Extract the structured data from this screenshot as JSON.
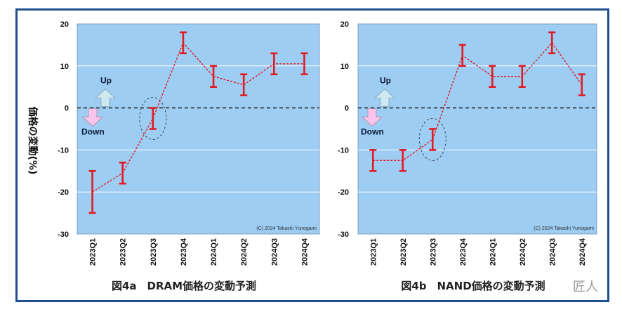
{
  "y_axis_label": "価格の変動(%)",
  "watermark": "匠人",
  "legend_up": "Up",
  "legend_down": "Down",
  "colors": {
    "plot_bg": "#9ecdf3",
    "series": "#e11b22",
    "frame": "#1f4f8f",
    "up_arrow": "#cde8ee",
    "down_arrow": "#f7c4ea"
  },
  "chart_data": [
    {
      "type": "line",
      "title": "図4a　DRAM価格の変動予測",
      "copyright": "(C) 2024 Takashi Yunogami",
      "categories": [
        "2023Q1",
        "2023Q2",
        "2023Q3",
        "2023Q4",
        "2024Q1",
        "2024Q2",
        "2024Q3",
        "2024Q4"
      ],
      "y_ticks": [
        "20",
        "10",
        "0",
        "-10",
        "-20",
        "-30"
      ],
      "ylim": [
        -30,
        20
      ],
      "series": [
        {
          "values": [
            -20,
            -15.5,
            -2.5,
            15.5,
            7.5,
            5.5,
            10.5,
            10.5
          ],
          "low": [
            -25,
            -18,
            -5,
            13,
            5,
            3,
            8,
            8
          ],
          "high": [
            -15,
            -13,
            0,
            18,
            10,
            8,
            13,
            13
          ]
        }
      ],
      "highlight_category": "2023Q3",
      "zero_line": "dashed",
      "grid": true
    },
    {
      "type": "line",
      "title": "図4b　NAND価格の変動予測",
      "copyright": "(C) 2024 Takashi Yunogami",
      "categories": [
        "2023Q1",
        "2023Q2",
        "2023Q3",
        "2023Q4",
        "2024Q1",
        "2024Q2",
        "2024Q3",
        "2024Q4"
      ],
      "y_ticks": [
        "20",
        "10",
        "0",
        "-10",
        "-20",
        "-30"
      ],
      "ylim": [
        -30,
        20
      ],
      "series": [
        {
          "values": [
            -12.5,
            -12.5,
            -7.5,
            12.5,
            7.5,
            7.5,
            15.5,
            5.5
          ],
          "low": [
            -15,
            -15,
            -10,
            10,
            5,
            5,
            13,
            3
          ],
          "high": [
            -10,
            -10,
            -5,
            15,
            10,
            10,
            18,
            8
          ]
        }
      ],
      "highlight_category": "2023Q3",
      "zero_line": "dashed",
      "grid": true
    }
  ]
}
